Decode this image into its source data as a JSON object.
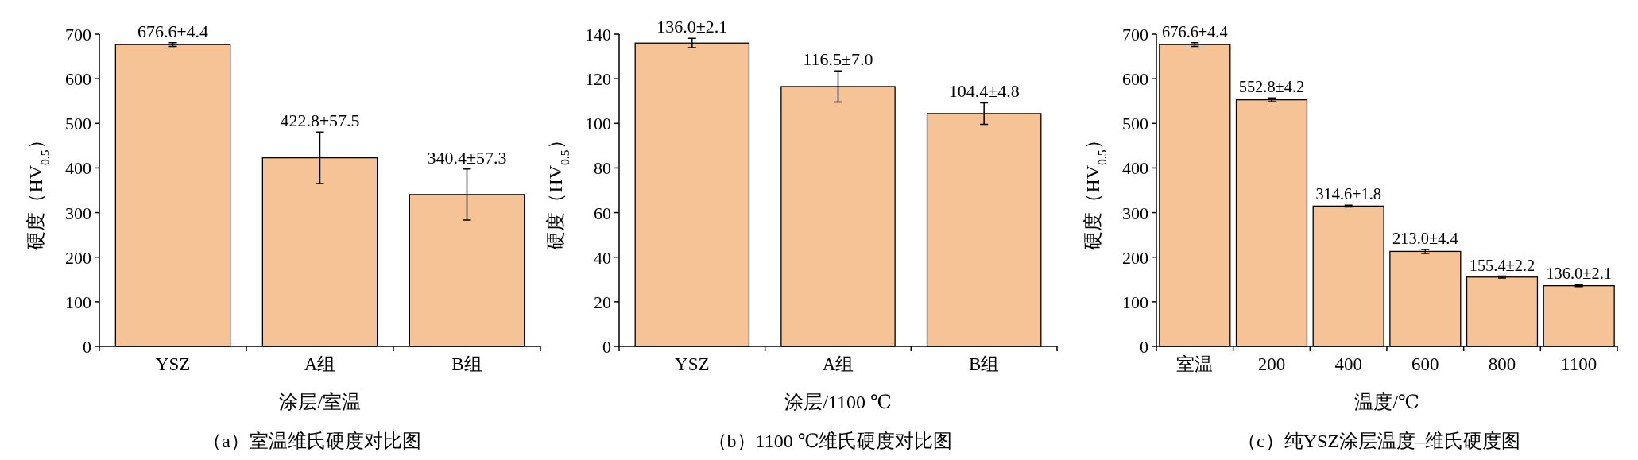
{
  "chart_data": [
    {
      "type": "bar",
      "title": "（a）室温维氏硬度对比图",
      "xlabel": "涂层/室温",
      "ylabel": "硬度（HV$_{0.5}$）",
      "categories": [
        "YSZ",
        "A组",
        "B组"
      ],
      "values": [
        676.6,
        422.8,
        340.4
      ],
      "errors": [
        4.4,
        57.5,
        57.3
      ],
      "value_labels": [
        "676.6±4.4",
        "422.8±57.5",
        "340.4±57.3"
      ],
      "color": "#f5c396",
      "ylim": [
        0,
        700
      ],
      "yticks": [
        0,
        100,
        200,
        300,
        400,
        500,
        600,
        700
      ],
      "grid": false
    },
    {
      "type": "bar",
      "title": "（b）1100 ℃维氏硬度对比图",
      "xlabel": "涂层/1100 ℃",
      "ylabel": "硬度（HV$_{0.5}$）",
      "categories": [
        "YSZ",
        "A组",
        "B组"
      ],
      "values": [
        136.0,
        116.5,
        104.4
      ],
      "errors": [
        2.1,
        7.0,
        4.8
      ],
      "value_labels": [
        "136.0±2.1",
        "116.5±7.0",
        "104.4±4.8"
      ],
      "color": "#f5c396",
      "ylim": [
        0,
        140
      ],
      "yticks": [
        0,
        20,
        40,
        60,
        80,
        100,
        120,
        140
      ],
      "grid": false
    },
    {
      "type": "bar",
      "title": "（c）纯YSZ涂层温度–维氏硬度图",
      "xlabel": "温度/℃",
      "ylabel": "硬度（HV$_{0.5}$）",
      "categories": [
        "室温",
        "200",
        "400",
        "600",
        "800",
        "1100"
      ],
      "values": [
        676.6,
        552.8,
        314.6,
        213.0,
        155.4,
        136.0
      ],
      "errors": [
        4.4,
        4.2,
        1.8,
        4.4,
        2.2,
        2.1
      ],
      "value_labels": [
        "676.6±4.4",
        "552.8±4.2",
        "314.6±1.8",
        "213.0±4.4",
        "155.4±2.2",
        "136.0±2.1"
      ],
      "color": "#f5c396",
      "ylim": [
        0,
        700
      ],
      "yticks": [
        0,
        100,
        200,
        300,
        400,
        500,
        600,
        700
      ],
      "grid": false
    }
  ]
}
